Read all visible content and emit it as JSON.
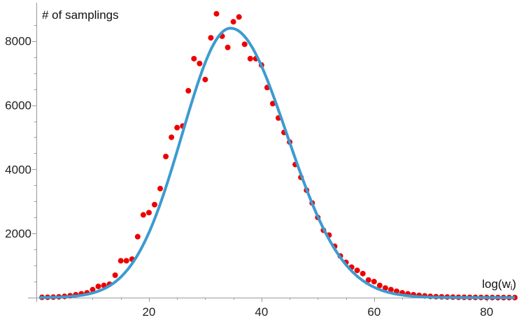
{
  "chart_data": {
    "type": "scatter",
    "title": "",
    "ylabel": "# of samplings",
    "xlabel_base": "log(w",
    "xlabel_sub": "i",
    "xlabel_close": ")",
    "xlim": [
      0,
      85
    ],
    "ylim": [
      0,
      8800
    ],
    "x_ticks": [
      20,
      40,
      60,
      80
    ],
    "y_ticks": [
      2000,
      4000,
      6000,
      8000
    ],
    "grid": false,
    "legend": "none",
    "colors": {
      "points": "#ee0000",
      "curve": "#3d9bd0",
      "axes": "#999999"
    },
    "series": [
      {
        "style": "points",
        "x": [
          1,
          2,
          3,
          4,
          5,
          6,
          7,
          8,
          9,
          10,
          11,
          12,
          13,
          14,
          15,
          16,
          17,
          18,
          19,
          20,
          21,
          22,
          23,
          24,
          25,
          26,
          27,
          28,
          29,
          30,
          31,
          32,
          33,
          34,
          35,
          36,
          37,
          38,
          39,
          40,
          41,
          42,
          43,
          44,
          45,
          46,
          47,
          48,
          49,
          50,
          51,
          52,
          53,
          54,
          55,
          56,
          57,
          58,
          59,
          60,
          61,
          62,
          63,
          64,
          65,
          66,
          67,
          68,
          69,
          70,
          71,
          72,
          73,
          74,
          75,
          76,
          77,
          78,
          79,
          80,
          81,
          82,
          83,
          84,
          85
        ],
        "y": [
          10,
          12,
          15,
          25,
          40,
          60,
          90,
          120,
          150,
          250,
          350,
          380,
          420,
          700,
          1150,
          1150,
          1200,
          1900,
          2580,
          2650,
          2900,
          3400,
          4400,
          5000,
          5300,
          5350,
          6450,
          7450,
          7300,
          6800,
          8100,
          8850,
          8150,
          7800,
          8600,
          8750,
          7900,
          7450,
          7450,
          7250,
          6550,
          6050,
          5600,
          5150,
          4850,
          4150,
          3750,
          3350,
          2950,
          2500,
          2100,
          1950,
          1600,
          1300,
          1100,
          950,
          850,
          750,
          550,
          500,
          380,
          300,
          250,
          200,
          150,
          120,
          90,
          70,
          55,
          40,
          30,
          25,
          20,
          15,
          12,
          10,
          8,
          7,
          6,
          5,
          4,
          3,
          3,
          2,
          2
        ]
      },
      {
        "style": "curve",
        "fit": {
          "amplitude": 8400,
          "mean": 34.5,
          "sigma_left": 8.6,
          "sigma_right": 10.0
        }
      }
    ]
  }
}
